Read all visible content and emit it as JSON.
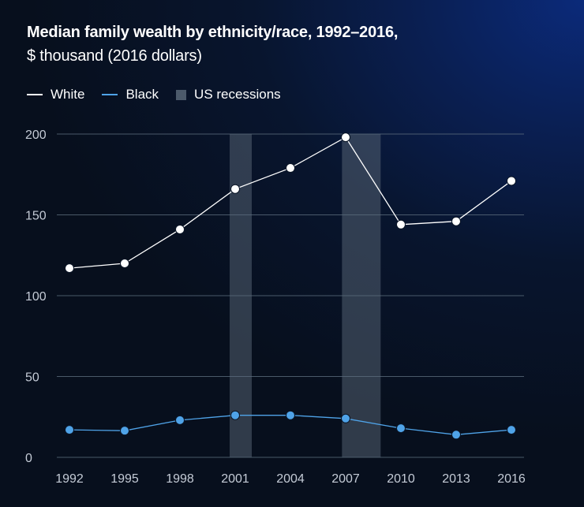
{
  "title": "Median family wealth by ethnicity/race, 1992–2016,",
  "subtitle": "$ thousand (2016 dollars)",
  "legend": [
    {
      "label": "White",
      "color": "#ffffff",
      "kind": "line"
    },
    {
      "label": "Black",
      "color": "#4fa3e8",
      "kind": "line"
    },
    {
      "label": "US recessions",
      "color": "#4c5a6b",
      "kind": "swatch"
    }
  ],
  "chart_data": {
    "type": "line",
    "x": [
      "1992",
      "1995",
      "1998",
      "2001",
      "2004",
      "2007",
      "2010",
      "2013",
      "2016"
    ],
    "ylim": [
      0,
      200
    ],
    "yticks": [
      0,
      50,
      100,
      150,
      200
    ],
    "grid": true,
    "legend_position": "top-left",
    "series": [
      {
        "name": "White",
        "color": "#ffffff",
        "values": [
          117,
          120,
          141,
          166,
          179,
          198,
          144,
          146,
          171
        ]
      },
      {
        "name": "Black",
        "color": "#4fa3e8",
        "values": [
          17,
          16.5,
          23,
          26,
          26,
          24,
          18,
          14,
          17
        ]
      }
    ],
    "recessions": [
      {
        "start": 2000.7,
        "end": 2001.9
      },
      {
        "start": 2006.8,
        "end": 2008.9
      }
    ]
  }
}
